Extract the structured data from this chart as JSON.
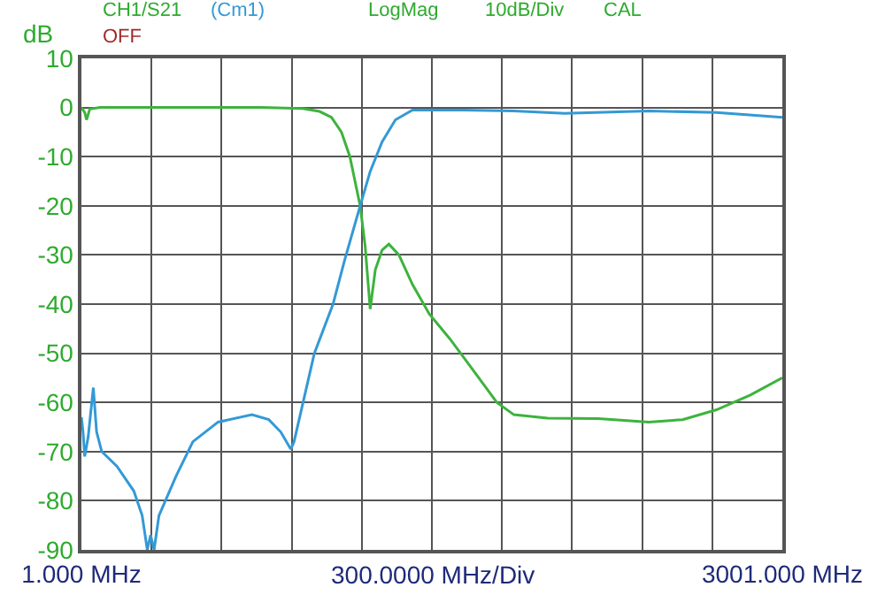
{
  "chart_data": {
    "type": "line",
    "ylabel": "dB",
    "xlabel": "300.0000 MHz/Div",
    "annotations": [
      "CH1/S21",
      "(Cm1)",
      "LogMag",
      "10dB/Div",
      "CAL",
      "OFF"
    ],
    "series": [
      {
        "color": "#3db33d",
        "x": [
          1,
          15,
          23,
          37,
          81,
          406,
          767,
          948,
          1020,
          1071,
          1114,
          1150,
          1172,
          1194,
          1215,
          1237,
          1259,
          1288,
          1317,
          1360,
          1418,
          1490,
          1577,
          1671,
          1779,
          1852,
          1996,
          2213,
          2430,
          2574,
          2719,
          2864,
          3001
        ],
        "values": [
          0,
          -1,
          -2.5,
          -0.3,
          0,
          0,
          0,
          -0.2,
          -0.8,
          -2,
          -5,
          -10,
          -15,
          -20,
          -28,
          -41,
          -33,
          -29,
          -27.8,
          -30,
          -36,
          -42,
          -47,
          -53,
          -60,
          -62.5,
          -63.2,
          -63.3,
          -64,
          -63.5,
          -61.5,
          -58.5,
          -55
        ]
      },
      {
        "color": "#3399d6",
        "x": [
          1,
          8,
          15,
          30,
          52,
          66,
          88,
          153,
          225,
          261,
          283,
          297,
          312,
          333,
          406,
          478,
          586,
          731,
          803,
          854,
          897,
          911,
          998,
          1078,
          1128,
          1179,
          1237,
          1288,
          1345,
          1418,
          1635,
          1852,
          2069,
          2430,
          2719,
          3001
        ],
        "values": [
          -63,
          -66,
          -71,
          -67,
          -57,
          -66,
          -70,
          -73,
          -78,
          -83,
          -90,
          -87,
          -90,
          -83,
          -75,
          -68,
          -64,
          -62.5,
          -63.5,
          -66,
          -69.5,
          -68,
          -50,
          -40,
          -31,
          -22.5,
          -13,
          -7,
          -2.5,
          -0.5,
          -0.5,
          -0.7,
          -1.2,
          -0.7,
          -1,
          -2
        ]
      }
    ],
    "xlim": [
      1,
      3001
    ],
    "xticks": [
      {
        "value": 1,
        "label": "1.000 MHz"
      },
      {
        "value": 301,
        "label": null
      },
      {
        "value": 601,
        "label": null
      },
      {
        "value": 901,
        "label": null
      },
      {
        "value": 1201,
        "label": null
      },
      {
        "value": 1501,
        "label": null
      },
      {
        "value": 1801,
        "label": null
      },
      {
        "value": 2101,
        "label": null
      },
      {
        "value": 2401,
        "label": null
      },
      {
        "value": 2701,
        "label": null
      },
      {
        "value": 3001,
        "label": "3001.000 MHz"
      }
    ],
    "ylim": [
      -90,
      10
    ],
    "yticks": [
      10,
      0,
      -10,
      -20,
      -30,
      -40,
      -50,
      -60,
      -70,
      -80,
      -90
    ],
    "grid": true,
    "marker": "none",
    "line_style": "solid"
  }
}
